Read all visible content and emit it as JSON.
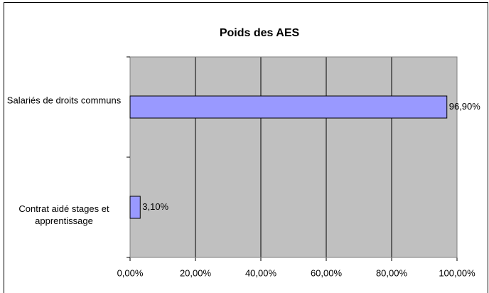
{
  "chart_data": {
    "type": "bar",
    "orientation": "horizontal",
    "title": "Poids des AES",
    "categories": [
      "Salariés de droits communs",
      "Contrat aidé stages et apprentissage"
    ],
    "values": [
      96.9,
      3.1
    ],
    "value_labels": [
      "96,90%",
      "3,10%"
    ],
    "color": "#9999ff",
    "plot_background": "#c0c0c0",
    "xlim": [
      0,
      100
    ],
    "xticks": [
      {
        "value": 0,
        "label": "0,00%"
      },
      {
        "value": 20,
        "label": "20,00%"
      },
      {
        "value": 40,
        "label": "40,00%"
      },
      {
        "value": 60,
        "label": "60,00%"
      },
      {
        "value": 80,
        "label": "80,00%"
      },
      {
        "value": 100,
        "label": "100,00%"
      }
    ],
    "grid": true
  }
}
